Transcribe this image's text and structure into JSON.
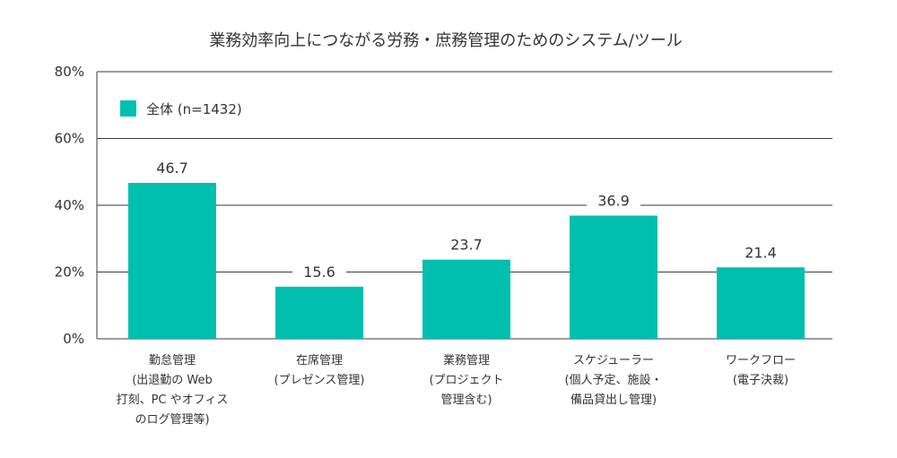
{
  "chart_data": {
    "type": "bar",
    "title": "業務効率向上につながる労務・庶務管理のためのシステム/ツール",
    "categories": [
      "勤怠管理\n(出退勤の Web\n打刻、PC やオフィス\nのログ管理等)",
      "在席管理\n(プレゼンス管理)",
      "業務管理\n(プロジェクト\n管理含む)",
      "スケジューラー\n(個人予定、施設・\n備品貸出し管理)",
      "ワークフロー\n(電子決裁)"
    ],
    "series": [
      {
        "name": "全体 (n=1432)",
        "values": [
          46.7,
          15.6,
          23.7,
          36.9,
          21.4
        ]
      }
    ],
    "value_labels": [
      "46.7",
      "15.6",
      "23.7",
      "36.9",
      "21.4"
    ],
    "ylim": [
      0,
      80
    ],
    "yticks": [
      "0%",
      "20%",
      "40%",
      "60%",
      "80%"
    ],
    "ytick_values": [
      0,
      20,
      40,
      60,
      80
    ],
    "grid": true,
    "legend_position": "top-left",
    "colors": {
      "bar": "#00bfae",
      "grid": "#3a3a3a",
      "text": "#333333"
    }
  }
}
